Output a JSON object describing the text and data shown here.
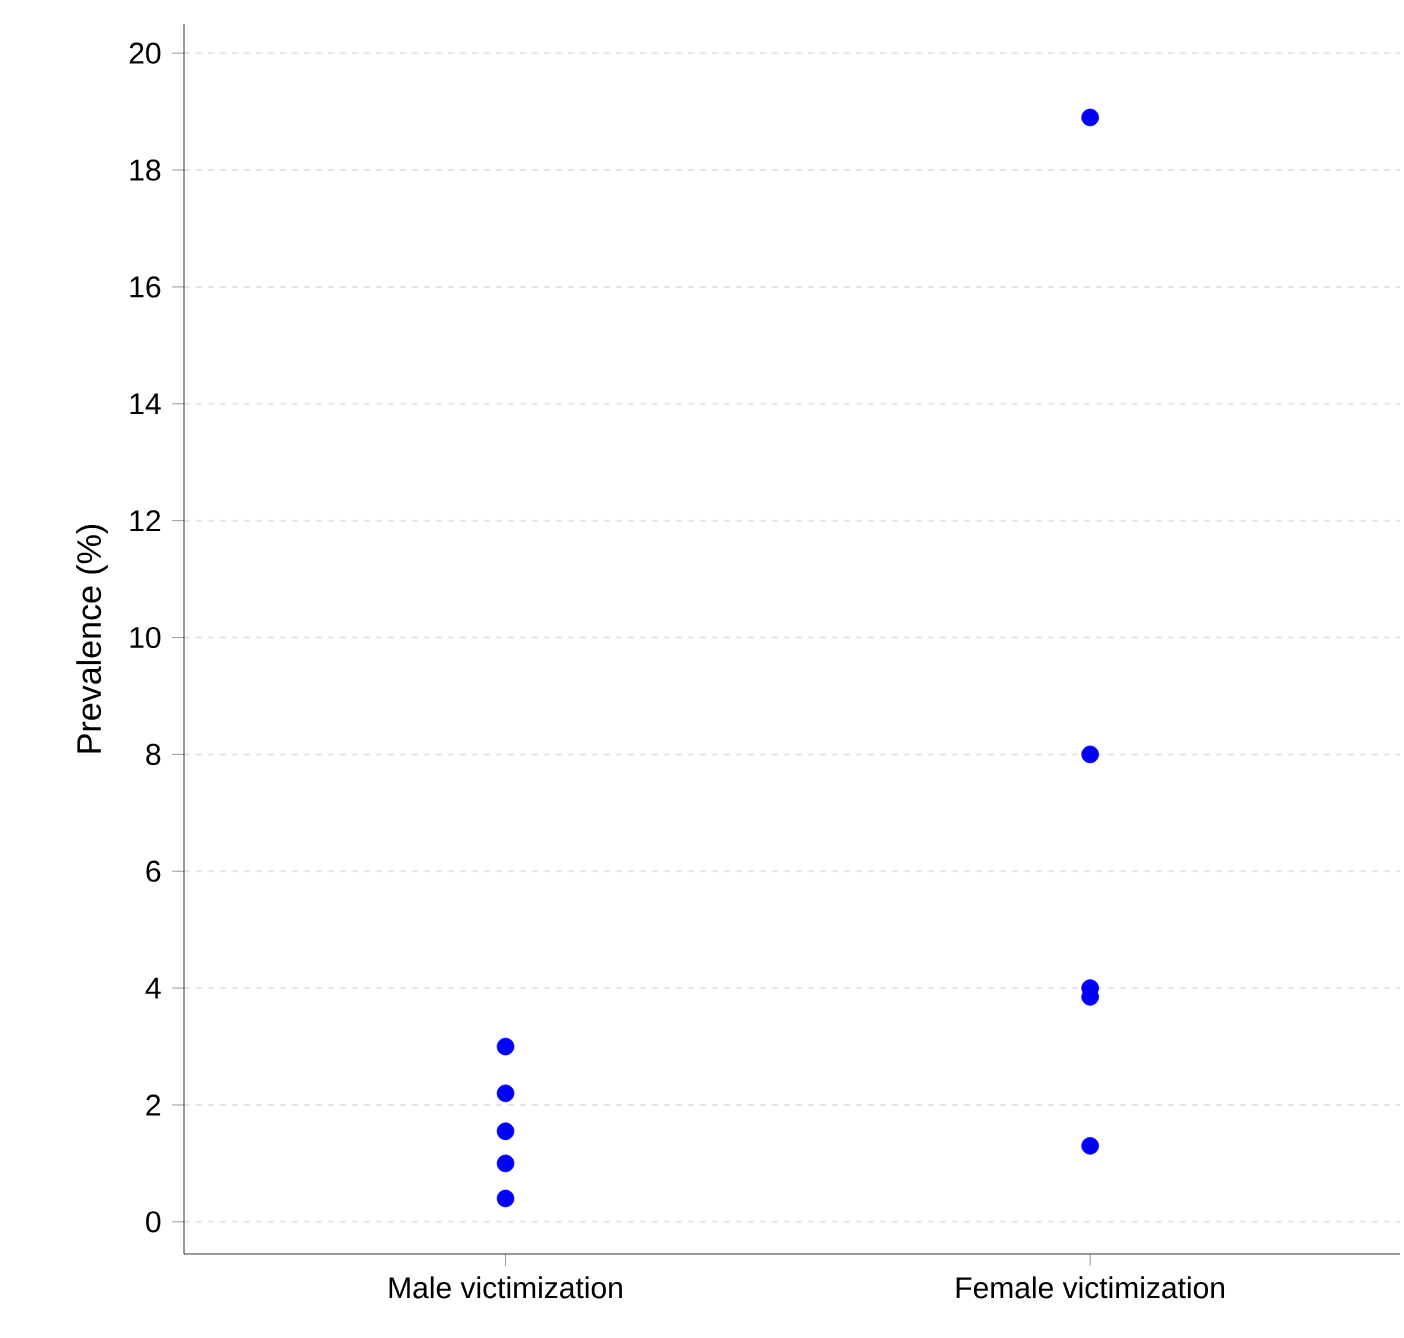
{
  "chart_data": {
    "type": "scatter",
    "ylabel": "Prevalence (%)",
    "categories": [
      "Male victimization",
      "Female victimization"
    ],
    "series": [
      {
        "color": "#0000ff",
        "x": [
          "Male victimization",
          "Male victimization",
          "Male victimization",
          "Male victimization",
          "Male victimization"
        ],
        "values": [
          3.0,
          2.2,
          1.55,
          1.0,
          0.4
        ]
      },
      {
        "color": "#0000ff",
        "x": [
          "Female victimization",
          "Female victimization",
          "Female victimization",
          "Female victimization",
          "Female victimization"
        ],
        "values": [
          18.9,
          8.0,
          4.0,
          3.85,
          1.3
        ]
      }
    ],
    "ylim": [
      -0.55,
      20.5
    ],
    "yticks": [
      0,
      2,
      4,
      6,
      8,
      10,
      12,
      14,
      16,
      18,
      20
    ],
    "grid": "y",
    "marker": "circle"
  }
}
